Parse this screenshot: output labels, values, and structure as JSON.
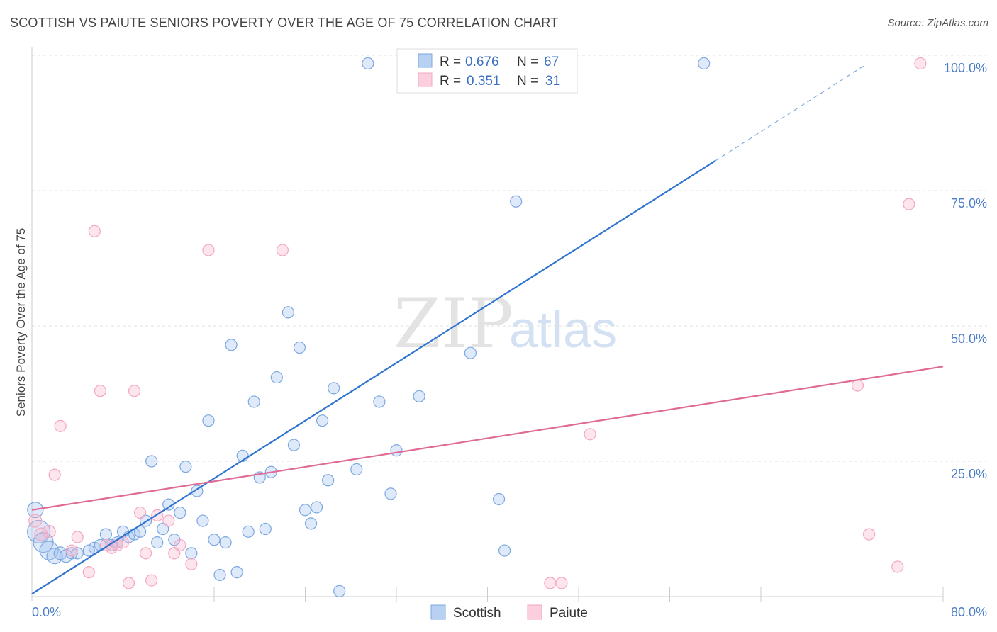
{
  "title": "SCOTTISH VS PAIUTE SENIORS POVERTY OVER THE AGE OF 75 CORRELATION CHART",
  "source": "Source: ZipAtlas.com",
  "watermark": {
    "zip": "ZIP",
    "atlas": "atlas"
  },
  "legend": {
    "r_label": "R =",
    "n_label": "N =",
    "rows": [
      {
        "r": "0.676",
        "n": "67"
      },
      {
        "r": "0.351",
        "n": "31"
      }
    ]
  },
  "chart_data": {
    "type": "scatter",
    "title": "SCOTTISH VS PAIUTE SENIORS POVERTY OVER THE AGE OF 75 CORRELATION CHART",
    "xlabel": "",
    "ylabel": "Seniors Poverty Over the Age of 75",
    "xlim": [
      0,
      80
    ],
    "ylim": [
      0,
      100
    ],
    "x_tick_labels": [
      "0.0%",
      "80.0%"
    ],
    "y_ticks": [
      25,
      50,
      75,
      100
    ],
    "y_tick_labels": [
      "25.0%",
      "50.0%",
      "75.0%",
      "100.0%"
    ],
    "grid": true,
    "legend_position": "top-center",
    "series": [
      {
        "name": "Scottish",
        "color": "#7ba7e0",
        "line_color": "#2f74d0",
        "r": 0.676,
        "n": 67,
        "trend": {
          "x0": 0,
          "y0": 0.5,
          "x1": 60,
          "y1": 80.5,
          "dashed_to_x": 73,
          "dashed_to_y": 98
        },
        "points": [
          [
            0.3,
            16.0,
            11
          ],
          [
            0.6,
            12.0,
            16
          ],
          [
            1.0,
            10.0,
            14
          ],
          [
            1.5,
            8.5,
            13
          ],
          [
            2.0,
            7.5,
            11
          ],
          [
            2.5,
            8.0,
            9
          ],
          [
            3.0,
            7.5,
            9
          ],
          [
            3.5,
            8.0,
            8
          ],
          [
            4.0,
            8.0,
            8
          ],
          [
            5.0,
            8.5,
            8
          ],
          [
            5.5,
            9.0,
            8
          ],
          [
            6.0,
            9.5,
            8
          ],
          [
            6.5,
            11.5,
            8
          ],
          [
            7.0,
            9.5,
            8
          ],
          [
            7.5,
            10.0,
            8
          ],
          [
            8.0,
            12.0,
            8
          ],
          [
            8.5,
            11.0,
            8
          ],
          [
            9.0,
            11.5,
            8
          ],
          [
            9.5,
            12.0,
            8
          ],
          [
            10.0,
            14.0,
            8
          ],
          [
            10.5,
            25.0,
            8
          ],
          [
            11.0,
            10.0,
            8
          ],
          [
            11.5,
            12.5,
            8
          ],
          [
            12.0,
            17.0,
            8
          ],
          [
            12.5,
            10.5,
            8
          ],
          [
            13.0,
            15.5,
            8
          ],
          [
            13.5,
            24.0,
            8
          ],
          [
            14.0,
            8.0,
            8
          ],
          [
            14.5,
            19.5,
            8
          ],
          [
            15.0,
            14.0,
            8
          ],
          [
            15.5,
            32.5,
            8
          ],
          [
            16.0,
            10.5,
            8
          ],
          [
            16.5,
            4.0,
            8
          ],
          [
            17.0,
            10.0,
            8
          ],
          [
            17.5,
            46.5,
            8
          ],
          [
            18.0,
            4.5,
            8
          ],
          [
            18.5,
            26.0,
            8
          ],
          [
            19.0,
            12.0,
            8
          ],
          [
            19.5,
            36.0,
            8
          ],
          [
            20.0,
            22.0,
            8
          ],
          [
            20.5,
            12.5,
            8
          ],
          [
            21.0,
            23.0,
            8
          ],
          [
            21.5,
            40.5,
            8
          ],
          [
            22.5,
            52.5,
            8
          ],
          [
            23.0,
            28.0,
            8
          ],
          [
            23.5,
            46.0,
            8
          ],
          [
            24.0,
            16.0,
            8
          ],
          [
            24.5,
            13.5,
            8
          ],
          [
            25.0,
            16.5,
            8
          ],
          [
            25.5,
            32.5,
            8
          ],
          [
            26.0,
            21.5,
            8
          ],
          [
            26.5,
            38.5,
            8
          ],
          [
            27.0,
            1.0,
            8
          ],
          [
            28.5,
            23.5,
            8
          ],
          [
            29.5,
            98.5,
            8
          ],
          [
            30.5,
            36.0,
            8
          ],
          [
            31.5,
            19.0,
            8
          ],
          [
            32.0,
            27.0,
            8
          ],
          [
            34.0,
            37.0,
            8
          ],
          [
            35.0,
            98.5,
            8
          ],
          [
            37.0,
            98.5,
            8
          ],
          [
            38.5,
            45.0,
            8
          ],
          [
            41.0,
            18.0,
            8
          ],
          [
            41.5,
            8.5,
            8
          ],
          [
            42.5,
            73.0,
            8
          ],
          [
            44.0,
            98.5,
            8
          ],
          [
            59.0,
            98.5,
            8
          ]
        ]
      },
      {
        "name": "Paiute",
        "color": "#f4a6c0",
        "line_color": "#e06a96",
        "r": 0.351,
        "n": 31,
        "trend": {
          "x0": 0,
          "y0": 16.0,
          "x1": 80,
          "y1": 42.5
        },
        "points": [
          [
            0.3,
            14.0,
            9
          ],
          [
            0.8,
            11.5,
            9
          ],
          [
            1.5,
            12.0,
            9
          ],
          [
            2.0,
            22.5,
            8
          ],
          [
            2.5,
            31.5,
            8
          ],
          [
            3.5,
            8.5,
            8
          ],
          [
            4.0,
            11.0,
            8
          ],
          [
            5.0,
            4.5,
            8
          ],
          [
            5.5,
            67.5,
            8
          ],
          [
            6.0,
            38.0,
            8
          ],
          [
            6.5,
            9.5,
            8
          ],
          [
            7.0,
            9.0,
            8
          ],
          [
            7.5,
            9.5,
            8
          ],
          [
            8.0,
            10.0,
            8
          ],
          [
            8.5,
            2.5,
            8
          ],
          [
            9.0,
            38.0,
            8
          ],
          [
            9.5,
            15.5,
            8
          ],
          [
            10.0,
            8.0,
            8
          ],
          [
            10.5,
            3.0,
            8
          ],
          [
            11.0,
            15.0,
            8
          ],
          [
            12.0,
            14.0,
            8
          ],
          [
            12.5,
            8.0,
            8
          ],
          [
            13.0,
            9.5,
            8
          ],
          [
            14.0,
            6.0,
            8
          ],
          [
            15.5,
            64.0,
            8
          ],
          [
            22.0,
            64.0,
            8
          ],
          [
            45.5,
            2.5,
            8
          ],
          [
            46.5,
            2.5,
            8
          ],
          [
            49.0,
            30.0,
            8
          ],
          [
            72.5,
            39.0,
            8
          ],
          [
            73.5,
            11.5,
            8
          ],
          [
            76.0,
            5.5,
            8
          ],
          [
            77.0,
            72.5,
            8
          ],
          [
            78.0,
            98.5,
            8
          ]
        ]
      }
    ]
  }
}
